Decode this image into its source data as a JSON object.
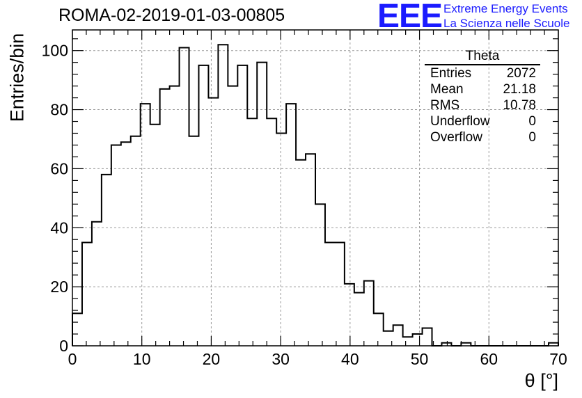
{
  "header": {
    "title": "ROMA-02-2019-01-03-00805",
    "logo_mark": "EEE",
    "logo_line1": "Extreme Energy Events",
    "logo_line2": "La Scienza nelle Scuole"
  },
  "stats_box": {
    "name": "Theta",
    "rows": [
      {
        "label": "Entries",
        "value": "2072"
      },
      {
        "label": "Mean",
        "value": "21.18"
      },
      {
        "label": "RMS",
        "value": "10.78"
      },
      {
        "label": "Underflow",
        "value": "0"
      },
      {
        "label": "Overflow",
        "value": "0"
      }
    ]
  },
  "chart_data": {
    "type": "bar",
    "histogram": true,
    "title": "ROMA-02-2019-01-03-00805",
    "xlabel": "θ [°]",
    "ylabel": "Entries/bin",
    "xlim": [
      0,
      70
    ],
    "ylim": [
      0,
      107
    ],
    "bin_width": 1.4,
    "x_ticks": [
      0,
      10,
      20,
      30,
      40,
      50,
      60,
      70
    ],
    "y_ticks": [
      0,
      20,
      40,
      60,
      80,
      100
    ],
    "grid": true,
    "line_color": "#000000",
    "bin_centers": [
      0.7,
      2.1,
      3.5,
      4.9,
      6.3,
      7.7,
      9.1,
      10.5,
      11.9,
      13.3,
      14.7,
      16.1,
      17.5,
      18.9,
      20.3,
      21.7,
      23.1,
      24.5,
      25.9,
      27.3,
      28.7,
      30.1,
      31.5,
      32.9,
      34.3,
      35.7,
      37.1,
      38.5,
      39.9,
      41.3,
      42.7,
      44.1,
      45.5,
      46.9,
      48.3,
      49.7,
      51.1,
      52.5,
      53.9,
      55.3,
      56.7,
      58.1,
      59.5,
      60.9,
      62.3,
      63.7,
      65.1,
      66.5,
      67.9,
      69.3
    ],
    "values": [
      11,
      35,
      42,
      58,
      68,
      69,
      71,
      82,
      75,
      87,
      88,
      101,
      71,
      95,
      84,
      102,
      88,
      95,
      77,
      96,
      77,
      72,
      82,
      63,
      65,
      48,
      35,
      35,
      21,
      18,
      22,
      11,
      5,
      7,
      3,
      4,
      6,
      0,
      1,
      0,
      1,
      0,
      0,
      0,
      0,
      0,
      0,
      0,
      0,
      1
    ]
  }
}
